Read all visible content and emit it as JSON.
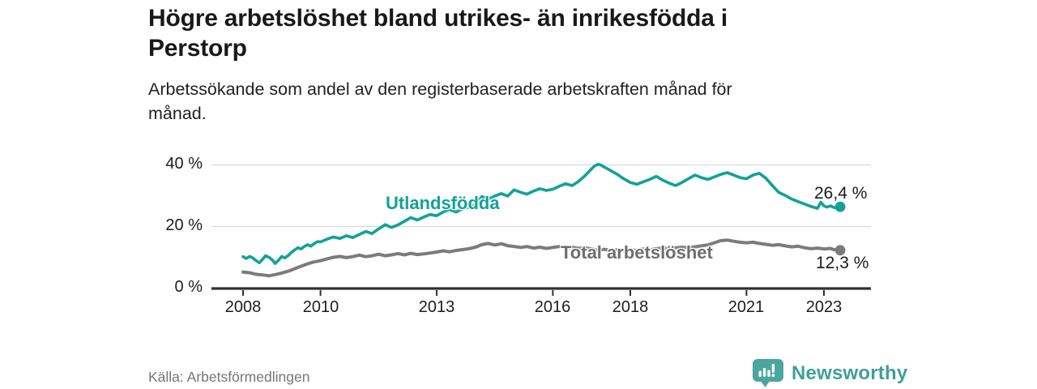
{
  "header": {
    "title_lines": [
      "Högre arbetslöshet bland utrikes- än inrikesfödda i",
      "Perstorp"
    ],
    "subtitle_lines": [
      "Arbetssökande som andel av den registerbaserade arbetskraften månad för",
      "månad."
    ]
  },
  "colors": {
    "foreign_series": "#12a296",
    "total_series": "#7b7b7b",
    "total_label_text": "#6d6d6d",
    "axis": "#303030",
    "grid": "#dadada",
    "value_label": "#1a1a1a",
    "logo": "#4aa69f",
    "logo_text": "#3f9f9b"
  },
  "chart_data": {
    "type": "line",
    "title": "Högre arbetslöshet bland utrikes- än inrikesfödda i Perstorp",
    "subtitle": "Arbetssökande som andel av den registerbaserade arbetskraften månad för månad.",
    "xlabel": "",
    "ylabel": "",
    "legend_position": "inline-labels",
    "grid": "horizontal-only",
    "x_axis": {
      "ticks": [
        2008,
        2010,
        2013,
        2016,
        2018,
        2021,
        2023
      ],
      "tick_labels": [
        "2008",
        "2010",
        "2013",
        "2016",
        "2018",
        "2021",
        "2023"
      ],
      "range": [
        2007.2,
        2024.3
      ]
    },
    "y_axis": {
      "ticks": [
        0,
        20,
        40
      ],
      "tick_labels": [
        "0 %",
        "20 %",
        "40 %"
      ],
      "range": [
        0,
        42
      ],
      "unit": "%"
    },
    "series": [
      {
        "name": "Utlandsfödda",
        "color": "#12a296",
        "end_label": "26,4 %",
        "end_value": 26.4,
        "points": [
          [
            2008.0,
            10.2
          ],
          [
            2008.08,
            9.6
          ],
          [
            2008.17,
            10.3
          ],
          [
            2008.25,
            9.8
          ],
          [
            2008.33,
            9.0
          ],
          [
            2008.42,
            8.2
          ],
          [
            2008.5,
            9.3
          ],
          [
            2008.58,
            10.5
          ],
          [
            2008.67,
            10.0
          ],
          [
            2008.75,
            9.2
          ],
          [
            2008.83,
            8.0
          ],
          [
            2008.92,
            9.1
          ],
          [
            2009.0,
            10.3
          ],
          [
            2009.08,
            9.8
          ],
          [
            2009.17,
            10.6
          ],
          [
            2009.25,
            11.6
          ],
          [
            2009.33,
            12.4
          ],
          [
            2009.42,
            13.1
          ],
          [
            2009.5,
            12.7
          ],
          [
            2009.58,
            13.5
          ],
          [
            2009.67,
            14.1
          ],
          [
            2009.75,
            13.6
          ],
          [
            2009.83,
            14.4
          ],
          [
            2009.92,
            15.1
          ],
          [
            2010.0,
            15.0
          ],
          [
            2010.17,
            15.9
          ],
          [
            2010.33,
            16.6
          ],
          [
            2010.5,
            16.1
          ],
          [
            2010.67,
            17.0
          ],
          [
            2010.83,
            16.4
          ],
          [
            2011.0,
            17.4
          ],
          [
            2011.17,
            18.4
          ],
          [
            2011.33,
            17.7
          ],
          [
            2011.5,
            19.2
          ],
          [
            2011.67,
            20.6
          ],
          [
            2011.83,
            19.7
          ],
          [
            2012.0,
            20.5
          ],
          [
            2012.17,
            21.7
          ],
          [
            2012.33,
            22.9
          ],
          [
            2012.5,
            22.1
          ],
          [
            2012.67,
            23.1
          ],
          [
            2012.83,
            23.9
          ],
          [
            2013.0,
            23.5
          ],
          [
            2013.17,
            24.7
          ],
          [
            2013.33,
            25.5
          ],
          [
            2013.5,
            24.7
          ],
          [
            2013.67,
            25.7
          ],
          [
            2013.83,
            26.3
          ],
          [
            2014.0,
            27.2
          ],
          [
            2014.17,
            29.7
          ],
          [
            2014.33,
            28.9
          ],
          [
            2014.5,
            29.9
          ],
          [
            2014.67,
            30.7
          ],
          [
            2014.83,
            29.9
          ],
          [
            2015.0,
            31.9
          ],
          [
            2015.17,
            31.1
          ],
          [
            2015.33,
            30.5
          ],
          [
            2015.5,
            31.5
          ],
          [
            2015.67,
            32.3
          ],
          [
            2015.83,
            31.7
          ],
          [
            2016.0,
            32.1
          ],
          [
            2016.17,
            33.1
          ],
          [
            2016.33,
            33.9
          ],
          [
            2016.5,
            33.3
          ],
          [
            2016.67,
            34.7
          ],
          [
            2016.83,
            36.5
          ],
          [
            2017.0,
            38.7
          ],
          [
            2017.08,
            39.7
          ],
          [
            2017.17,
            40.2
          ],
          [
            2017.25,
            39.9
          ],
          [
            2017.33,
            39.3
          ],
          [
            2017.5,
            38.1
          ],
          [
            2017.67,
            36.9
          ],
          [
            2017.83,
            35.5
          ],
          [
            2018.0,
            34.3
          ],
          [
            2018.17,
            33.7
          ],
          [
            2018.33,
            34.5
          ],
          [
            2018.5,
            35.3
          ],
          [
            2018.67,
            36.3
          ],
          [
            2018.83,
            35.1
          ],
          [
            2019.0,
            34.1
          ],
          [
            2019.17,
            33.3
          ],
          [
            2019.33,
            34.3
          ],
          [
            2019.5,
            35.5
          ],
          [
            2019.67,
            36.7
          ],
          [
            2019.83,
            35.9
          ],
          [
            2020.0,
            35.3
          ],
          [
            2020.17,
            36.1
          ],
          [
            2020.33,
            36.9
          ],
          [
            2020.5,
            37.5
          ],
          [
            2020.67,
            36.7
          ],
          [
            2020.83,
            35.9
          ],
          [
            2021.0,
            35.5
          ],
          [
            2021.17,
            36.7
          ],
          [
            2021.33,
            37.3
          ],
          [
            2021.5,
            35.7
          ],
          [
            2021.67,
            33.3
          ],
          [
            2021.83,
            31.1
          ],
          [
            2022.0,
            30.1
          ],
          [
            2022.17,
            28.9
          ],
          [
            2022.33,
            28.1
          ],
          [
            2022.5,
            27.3
          ],
          [
            2022.67,
            26.5
          ],
          [
            2022.83,
            25.9
          ],
          [
            2022.92,
            27.9
          ],
          [
            2023.0,
            26.7
          ],
          [
            2023.08,
            26.3
          ],
          [
            2023.17,
            26.7
          ],
          [
            2023.25,
            26.2
          ],
          [
            2023.33,
            26.0
          ],
          [
            2023.42,
            26.4
          ]
        ]
      },
      {
        "name": "Total arbetslöshet",
        "color": "#7b7b7b",
        "end_label": "12,3 %",
        "end_value": 12.3,
        "points": [
          [
            2008.0,
            5.2
          ],
          [
            2008.17,
            5.0
          ],
          [
            2008.33,
            4.5
          ],
          [
            2008.5,
            4.3
          ],
          [
            2008.67,
            4.0
          ],
          [
            2008.83,
            4.4
          ],
          [
            2009.0,
            4.9
          ],
          [
            2009.17,
            5.5
          ],
          [
            2009.33,
            6.3
          ],
          [
            2009.5,
            7.1
          ],
          [
            2009.67,
            7.9
          ],
          [
            2009.83,
            8.5
          ],
          [
            2010.0,
            8.9
          ],
          [
            2010.17,
            9.5
          ],
          [
            2010.33,
            10.0
          ],
          [
            2010.5,
            10.3
          ],
          [
            2010.67,
            9.9
          ],
          [
            2010.83,
            10.2
          ],
          [
            2011.0,
            10.7
          ],
          [
            2011.17,
            10.2
          ],
          [
            2011.33,
            10.5
          ],
          [
            2011.5,
            11.0
          ],
          [
            2011.67,
            10.5
          ],
          [
            2011.83,
            10.8
          ],
          [
            2012.0,
            11.2
          ],
          [
            2012.17,
            10.8
          ],
          [
            2012.33,
            11.3
          ],
          [
            2012.5,
            10.9
          ],
          [
            2012.67,
            11.1
          ],
          [
            2012.83,
            11.4
          ],
          [
            2013.0,
            11.7
          ],
          [
            2013.17,
            12.1
          ],
          [
            2013.33,
            11.8
          ],
          [
            2013.5,
            12.2
          ],
          [
            2013.67,
            12.5
          ],
          [
            2013.83,
            12.8
          ],
          [
            2014.0,
            13.3
          ],
          [
            2014.17,
            14.1
          ],
          [
            2014.33,
            14.5
          ],
          [
            2014.5,
            14.0
          ],
          [
            2014.67,
            14.4
          ],
          [
            2014.83,
            13.8
          ],
          [
            2015.0,
            13.5
          ],
          [
            2015.17,
            13.2
          ],
          [
            2015.33,
            13.5
          ],
          [
            2015.5,
            13.0
          ],
          [
            2015.67,
            13.3
          ],
          [
            2015.83,
            12.9
          ],
          [
            2016.0,
            13.2
          ],
          [
            2016.17,
            13.5
          ],
          [
            2016.33,
            13.0
          ],
          [
            2016.5,
            13.3
          ],
          [
            2016.67,
            12.9
          ],
          [
            2016.83,
            13.1
          ],
          [
            2017.0,
            12.7
          ],
          [
            2017.17,
            12.3
          ],
          [
            2017.33,
            12.6
          ],
          [
            2017.5,
            12.2
          ],
          [
            2017.67,
            12.5
          ],
          [
            2017.83,
            12.3
          ],
          [
            2018.0,
            12.5
          ],
          [
            2018.17,
            12.2
          ],
          [
            2018.33,
            12.7
          ],
          [
            2018.5,
            12.4
          ],
          [
            2018.67,
            12.8
          ],
          [
            2018.83,
            13.0
          ],
          [
            2019.0,
            12.8
          ],
          [
            2019.17,
            13.1
          ],
          [
            2019.33,
            13.3
          ],
          [
            2019.5,
            13.1
          ],
          [
            2019.67,
            13.4
          ],
          [
            2019.83,
            13.7
          ],
          [
            2020.0,
            14.0
          ],
          [
            2020.17,
            14.7
          ],
          [
            2020.33,
            15.4
          ],
          [
            2020.5,
            15.6
          ],
          [
            2020.67,
            15.2
          ],
          [
            2020.83,
            14.9
          ],
          [
            2021.0,
            14.7
          ],
          [
            2021.17,
            14.9
          ],
          [
            2021.33,
            14.5
          ],
          [
            2021.5,
            14.2
          ],
          [
            2021.67,
            13.9
          ],
          [
            2021.83,
            14.1
          ],
          [
            2022.0,
            13.7
          ],
          [
            2022.17,
            13.4
          ],
          [
            2022.33,
            13.6
          ],
          [
            2022.5,
            13.1
          ],
          [
            2022.67,
            12.8
          ],
          [
            2022.83,
            13.0
          ],
          [
            2023.0,
            12.7
          ],
          [
            2023.17,
            12.9
          ],
          [
            2023.25,
            12.5
          ],
          [
            2023.42,
            12.3
          ]
        ]
      }
    ]
  },
  "footer": {
    "source": "Källa: Arbetsförmedlingen",
    "logo_text": "Newsworthy"
  }
}
